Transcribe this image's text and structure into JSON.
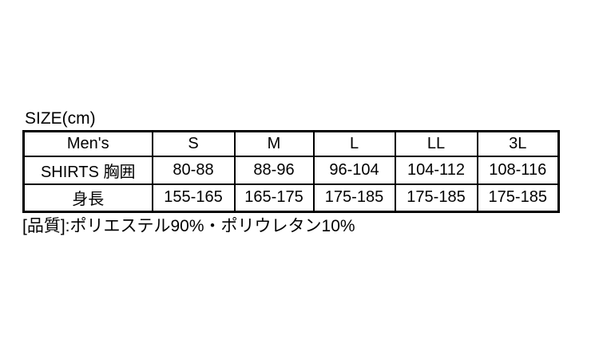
{
  "colors": {
    "background": "#ffffff",
    "text": "#000000",
    "border": "#000000"
  },
  "chart_data": {
    "type": "table",
    "title": "SIZE(cm)",
    "unit": "cm",
    "columns": [
      "Men's",
      "S",
      "M",
      "L",
      "LL",
      "3L"
    ],
    "rows": [
      {
        "label": "SHIRTS 胸囲",
        "values": [
          "80-88",
          "88-96",
          "96-104",
          "104-112",
          "108-116"
        ]
      },
      {
        "label": "身長",
        "values": [
          "155-165",
          "165-175",
          "175-185",
          "175-185",
          "175-185"
        ]
      }
    ],
    "footnote": "[品質]:ポリエステル90%・ポリウレタン10%"
  }
}
